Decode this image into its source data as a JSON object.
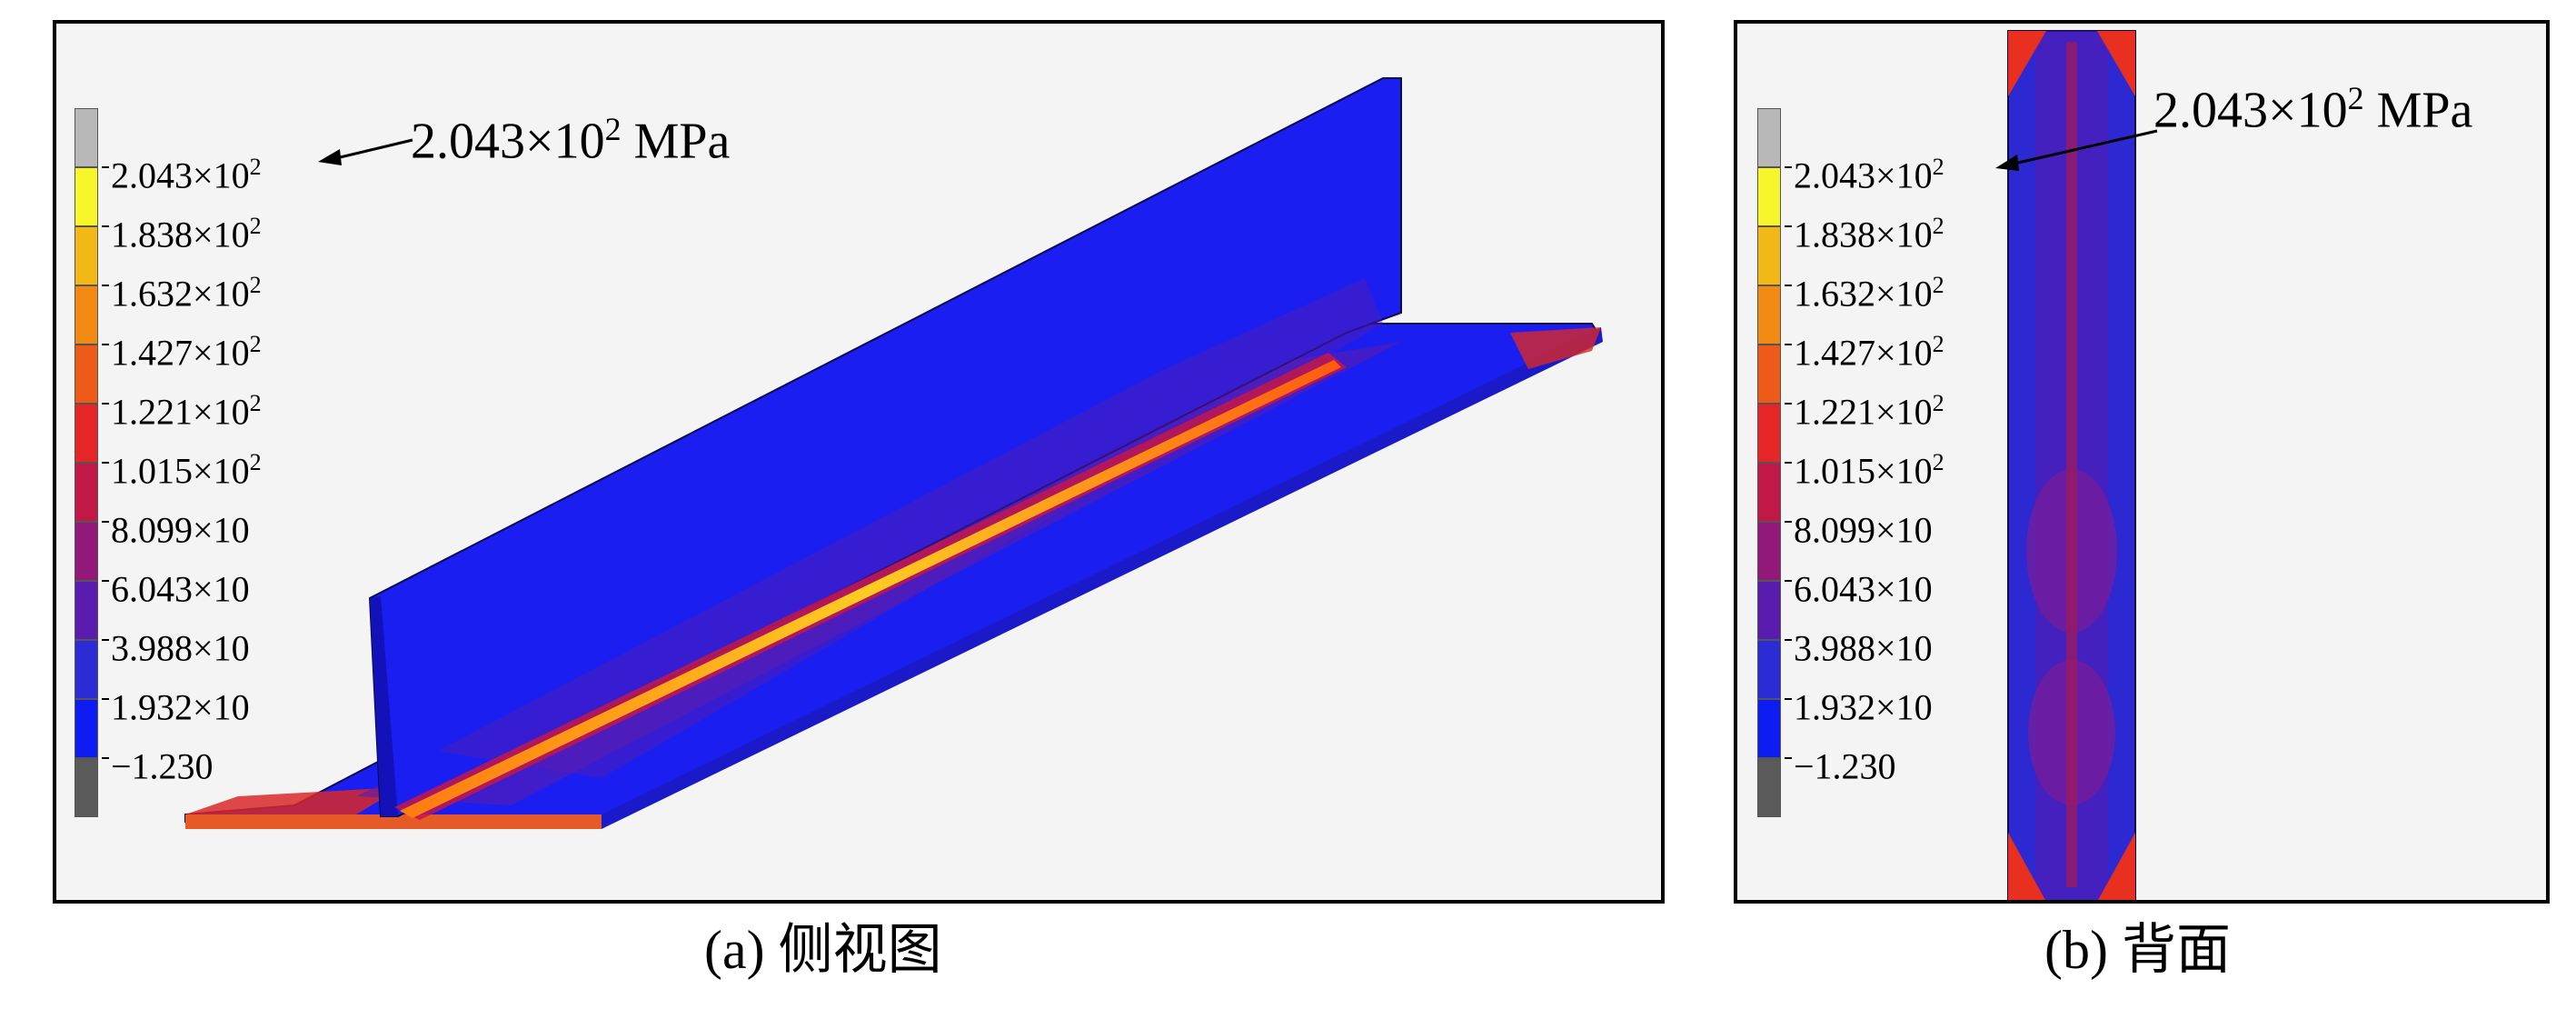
{
  "colorbar": {
    "labels": [
      {
        "mantissa": "2.043",
        "times": "×",
        "base": "10",
        "exp": "2"
      },
      {
        "mantissa": "1.838",
        "times": "×",
        "base": "10",
        "exp": "2"
      },
      {
        "mantissa": "1.632",
        "times": "×",
        "base": "10",
        "exp": "2"
      },
      {
        "mantissa": "1.427",
        "times": "×",
        "base": "10",
        "exp": "2"
      },
      {
        "mantissa": "1.221",
        "times": "×",
        "base": "10",
        "exp": "2"
      },
      {
        "mantissa": "1.015",
        "times": "×",
        "base": "10",
        "exp": "2"
      },
      {
        "mantissa": "8.099",
        "times": "×",
        "base": "10",
        "exp": ""
      },
      {
        "mantissa": "6.043",
        "times": "×",
        "base": "10",
        "exp": ""
      },
      {
        "mantissa": "3.988",
        "times": "×",
        "base": "10",
        "exp": ""
      },
      {
        "mantissa": "1.932",
        "times": "×",
        "base": "10",
        "exp": ""
      },
      {
        "mantissa": "−1.230",
        "times": "",
        "base": "",
        "exp": ""
      }
    ],
    "colors": [
      "#b8b8b8",
      "#f6f62a",
      "#f2b815",
      "#f08a12",
      "#ee5a18",
      "#e62626",
      "#c11848",
      "#92187a",
      "#5a1cae",
      "#2c2cd6",
      "#0d1cf2",
      "#5a5a5a"
    ]
  },
  "panels": {
    "a": {
      "callout": {
        "mantissa": "2.043",
        "times": "×",
        "base": "10",
        "exp": "2",
        "unit": "MPa"
      },
      "caption": "(a) 侧视图"
    },
    "b": {
      "callout": {
        "mantissa": "2.043",
        "times": "×",
        "base": "10",
        "exp": "2",
        "unit": "MPa"
      },
      "caption": "(b) 背面"
    }
  }
}
